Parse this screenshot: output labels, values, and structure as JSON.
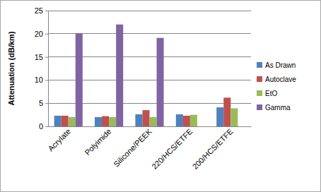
{
  "chart_data": {
    "type": "bar",
    "y_label": "Attenuation (dB/km)",
    "categories": [
      "Acrylate",
      "Polyimide",
      "Silicone/PEEK",
      "220/HCS/ETFE",
      "200/HCS/ETFE"
    ],
    "series": [
      {
        "name": "As Drawn",
        "color": "#4f81bd",
        "values": [
          2.3,
          2.0,
          2.6,
          2.6,
          4.1
        ]
      },
      {
        "name": "Autoclave",
        "color": "#c0504d",
        "values": [
          2.3,
          2.2,
          3.5,
          2.3,
          6.2
        ]
      },
      {
        "name": "EtO",
        "color": "#9bbb59",
        "values": [
          2.0,
          2.0,
          2.0,
          2.5,
          3.9
        ]
      },
      {
        "name": "Gamma",
        "color": "#8064a2",
        "values": [
          20.1,
          22.0,
          19.1,
          null,
          null
        ]
      }
    ],
    "ylim": [
      0,
      25
    ],
    "yticks": [
      0,
      5,
      10,
      15,
      20,
      25
    ],
    "grid": true,
    "legend": "right"
  }
}
